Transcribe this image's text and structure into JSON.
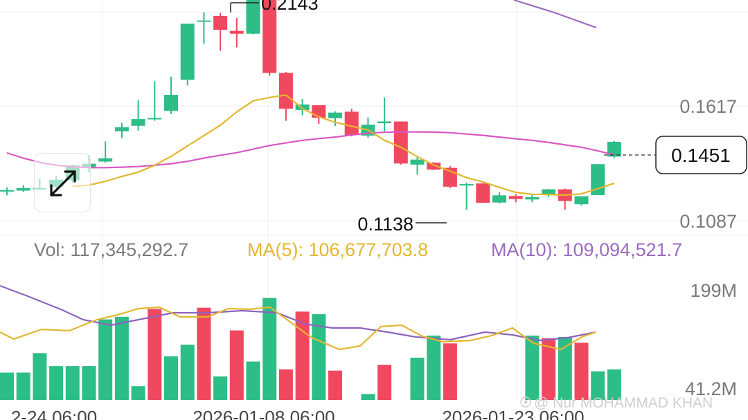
{
  "colors": {
    "up": "#2DBD86",
    "down": "#F0485E",
    "ma5": "#E3B72E",
    "ma10_price": "#D957C4",
    "ma_long": "#9B6BBF",
    "vol_ma10": "#8E63BE",
    "grid": "#ececec",
    "label": "#7a7a7a"
  },
  "icons": {
    "expand": "expand-arrows-icon",
    "watermark": "creator-badge-icon"
  },
  "price_axis": {
    "labels": [
      "0.1617",
      "0.1087"
    ],
    "last_price": "0.1451"
  },
  "annotations": {
    "high": "0.2143",
    "low": "0.1138"
  },
  "info_bar": {
    "vol": "Vol: 117,345,292.7",
    "ma5": "MA(5): 106,677,703.8",
    "ma10": "MA(10): 109,094,521.7"
  },
  "volume_axis": {
    "labels": [
      "199M",
      "41.2M"
    ]
  },
  "time_axis": [
    "2-24 06:00",
    "2026-01-08 06:00",
    "2026-01-23 06:00"
  ],
  "watermark": "@ Nur MOHAMMAD KHAN",
  "chart_data": [
    {
      "type": "candlestick",
      "y_tick_labels": [
        "0.1617",
        "0.1087"
      ],
      "last_price": 0.1451,
      "high_marker": 0.2143,
      "low_marker": 0.1138,
      "candles": [
        {
          "o": 0.1228,
          "h": 0.1241,
          "l": 0.1204,
          "c": 0.1228
        },
        {
          "o": 0.1226,
          "h": 0.1252,
          "l": 0.122,
          "c": 0.1238
        },
        {
          "o": 0.1238,
          "h": 0.1282,
          "l": 0.1231,
          "c": 0.1238
        },
        {
          "o": 0.1244,
          "h": 0.1293,
          "l": 0.1236,
          "c": 0.1276
        },
        {
          "o": 0.1274,
          "h": 0.1346,
          "l": 0.1262,
          "c": 0.1342
        },
        {
          "o": 0.1334,
          "h": 0.1388,
          "l": 0.131,
          "c": 0.135
        },
        {
          "o": 0.136,
          "h": 0.1453,
          "l": 0.1355,
          "c": 0.1375
        },
        {
          "o": 0.15,
          "h": 0.1539,
          "l": 0.1467,
          "c": 0.1518
        },
        {
          "o": 0.1525,
          "h": 0.1643,
          "l": 0.1502,
          "c": 0.1556
        },
        {
          "o": 0.156,
          "h": 0.1731,
          "l": 0.1548,
          "c": 0.1561
        },
        {
          "o": 0.1594,
          "h": 0.1752,
          "l": 0.1579,
          "c": 0.1668
        },
        {
          "o": 0.1737,
          "h": 0.1992,
          "l": 0.1712,
          "c": 0.1996
        },
        {
          "o": 0.2006,
          "h": 0.2049,
          "l": 0.1903,
          "c": 0.2011
        },
        {
          "o": 0.2032,
          "h": 0.2046,
          "l": 0.1871,
          "c": 0.1968
        },
        {
          "o": 0.1963,
          "h": 0.2023,
          "l": 0.1887,
          "c": 0.195
        },
        {
          "o": 0.195,
          "h": 0.2148,
          "l": 0.1947,
          "c": 0.214
        },
        {
          "o": 0.2141,
          "h": 0.2143,
          "l": 0.1756,
          "c": 0.1769
        },
        {
          "o": 0.1769,
          "h": 0.1773,
          "l": 0.1548,
          "c": 0.1604
        },
        {
          "o": 0.1598,
          "h": 0.1649,
          "l": 0.1574,
          "c": 0.1623
        },
        {
          "o": 0.162,
          "h": 0.162,
          "l": 0.1533,
          "c": 0.1562
        },
        {
          "o": 0.156,
          "h": 0.1591,
          "l": 0.1525,
          "c": 0.1586
        },
        {
          "o": 0.159,
          "h": 0.1604,
          "l": 0.1476,
          "c": 0.1482
        },
        {
          "o": 0.148,
          "h": 0.1564,
          "l": 0.147,
          "c": 0.153
        },
        {
          "o": 0.1537,
          "h": 0.1656,
          "l": 0.15,
          "c": 0.1545
        },
        {
          "o": 0.1545,
          "h": 0.1545,
          "l": 0.1346,
          "c": 0.1351
        },
        {
          "o": 0.1346,
          "h": 0.1384,
          "l": 0.13,
          "c": 0.1369
        },
        {
          "o": 0.1355,
          "h": 0.1357,
          "l": 0.132,
          "c": 0.1323
        },
        {
          "o": 0.1331,
          "h": 0.1339,
          "l": 0.1237,
          "c": 0.1244
        },
        {
          "o": 0.125,
          "h": 0.1263,
          "l": 0.1138,
          "c": 0.1256
        },
        {
          "o": 0.1259,
          "h": 0.126,
          "l": 0.1169,
          "c": 0.117
        },
        {
          "o": 0.1171,
          "h": 0.1219,
          "l": 0.1167,
          "c": 0.1204
        },
        {
          "o": 0.1201,
          "h": 0.121,
          "l": 0.1172,
          "c": 0.1187
        },
        {
          "o": 0.1185,
          "h": 0.1212,
          "l": 0.1172,
          "c": 0.1196
        },
        {
          "o": 0.1207,
          "h": 0.1234,
          "l": 0.1196,
          "c": 0.1232
        },
        {
          "o": 0.1232,
          "h": 0.1235,
          "l": 0.1138,
          "c": 0.1178
        },
        {
          "o": 0.1163,
          "h": 0.1197,
          "l": 0.1157,
          "c": 0.12
        },
        {
          "o": 0.1205,
          "h": 0.1349,
          "l": 0.1205,
          "c": 0.1348
        },
        {
          "o": 0.1383,
          "h": 0.1456,
          "l": 0.1376,
          "c": 0.1451
        }
      ],
      "ma5": [
        null,
        null,
        null,
        null,
        0.1245,
        0.1251,
        0.1269,
        0.1291,
        0.1311,
        0.1343,
        0.1384,
        0.1432,
        0.148,
        0.1528,
        0.1589,
        0.164,
        0.1656,
        0.1667,
        0.1605,
        0.1567,
        0.1541,
        0.1523,
        0.1506,
        0.1458,
        0.1426,
        0.1383,
        0.1344,
        0.1316,
        0.1286,
        0.1266,
        0.1241,
        0.1218,
        0.1209,
        0.1208,
        0.1205,
        0.1211,
        0.1235,
        0.126
      ],
      "ma10": [
        0.14,
        0.1376,
        0.1356,
        0.1343,
        0.1336,
        0.1332,
        0.1332,
        0.1334,
        0.1337,
        0.1343,
        0.135,
        0.1361,
        0.1376,
        0.1389,
        0.1401,
        0.1417,
        0.1434,
        0.1446,
        0.1458,
        0.1466,
        0.1473,
        0.1483,
        0.1491,
        0.1495,
        0.1497,
        0.1497,
        0.1496,
        0.1493,
        0.1487,
        0.1481,
        0.1473,
        0.1465,
        0.1458,
        0.1448,
        0.1437,
        0.1426,
        0.1409,
        0.1391
      ],
      "ma_long": [
        null,
        null,
        null,
        null,
        null,
        null,
        null,
        null,
        null,
        null,
        null,
        null,
        null,
        null,
        null,
        null,
        null,
        null,
        null,
        null,
        null,
        null,
        null,
        null,
        null,
        null,
        null,
        null,
        null,
        null,
        null,
        0.2211,
        0.2198,
        0.2186,
        0.2174,
        0.2162,
        0.2149,
        0.2136
      ]
    },
    {
      "type": "bar",
      "title": "Volume",
      "y_tick_labels": [
        "199M",
        "41.2M"
      ],
      "values": [
        62,
        62,
        92,
        72,
        72,
        72,
        144,
        148,
        41,
        160,
        87,
        105,
        162,
        56,
        127,
        79,
        177,
        67,
        156,
        152,
        65,
        0,
        29,
        74,
        0,
        85,
        119,
        107,
        0,
        0,
        15,
        8,
        119,
        115,
        117,
        108,
        64,
        67
      ],
      "directions": [
        "up",
        "up",
        "up",
        "up",
        "up",
        "up",
        "up",
        "up",
        "up",
        "down",
        "up",
        "up",
        "down",
        "up",
        "down",
        "up",
        "up",
        "down",
        "down",
        "up",
        "down",
        "up",
        "up",
        "down",
        "up",
        "up",
        "up",
        "down",
        "down",
        "up",
        "up",
        "up",
        "up",
        "down",
        "up",
        "down",
        "up",
        "up"
      ],
      "ma5": [
        null,
        null,
        null,
        null,
        null,
        null,
        null,
        null,
        null,
        null,
        null,
        null,
        null,
        null,
        null,
        null,
        null,
        null,
        null,
        null,
        null,
        null,
        null,
        null,
        null,
        null,
        null,
        null,
        null,
        null,
        null,
        null,
        null,
        null,
        null,
        null,
        null,
        null
      ],
      "ma10": [
        null,
        null,
        null,
        null,
        null,
        null,
        null,
        null,
        null,
        null,
        null,
        null,
        null,
        null,
        null,
        null,
        null,
        null,
        null,
        null,
        null,
        null,
        null,
        null,
        null,
        null,
        null,
        null,
        null,
        null,
        null,
        null,
        null,
        null,
        null,
        null,
        null,
        null
      ]
    }
  ]
}
